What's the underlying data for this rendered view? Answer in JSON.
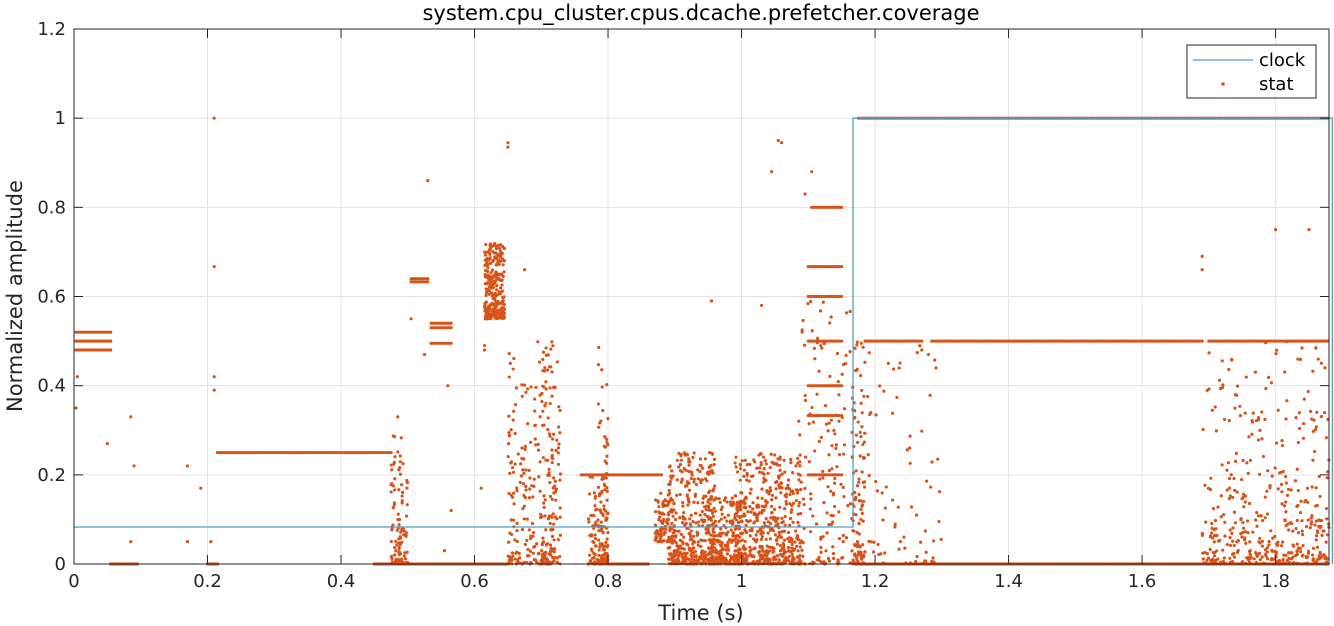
{
  "chart_data": {
    "type": "scatter",
    "title": "system.cpu_cluster.cpus.dcache.prefetcher.coverage",
    "xlabel": "Time (s)",
    "ylabel": "Normalized amplitude",
    "xlim": [
      0,
      1.88
    ],
    "ylim": [
      0,
      1.2
    ],
    "x_ticks": [
      "0",
      "0.2",
      "0.4",
      "0.6",
      "0.8",
      "1",
      "1.2",
      "1.4",
      "1.6",
      "1.8"
    ],
    "y_ticks": [
      "0",
      "0.2",
      "0.4",
      "0.6",
      "0.8",
      "1",
      "1.2"
    ],
    "grid": true,
    "legend_position": "top-right",
    "series": [
      {
        "name": "clock",
        "kind": "step-line",
        "color": "#4f9fc8",
        "x": [
          0,
          1.167,
          1.167,
          1.885,
          1.885
        ],
        "y": [
          0.083,
          0.083,
          1.0,
          1.0,
          0
        ]
      },
      {
        "name": "stat",
        "kind": "markers",
        "color": "#d95319",
        "bands": [
          {
            "x": [
              0.003,
              0.055
            ],
            "y": 0.52
          },
          {
            "x": [
              0.003,
              0.055
            ],
            "y": 0.5
          },
          {
            "x": [
              0.003,
              0.055
            ],
            "y": 0.48
          },
          {
            "x": [
              0.215,
              0.475
            ],
            "y": 0.25
          },
          {
            "x": [
              0.505,
              0.53
            ],
            "y": 0.64
          },
          {
            "x": [
              0.505,
              0.53
            ],
            "y": 0.633
          },
          {
            "x": [
              0.535,
              0.565
            ],
            "y": 0.54
          },
          {
            "x": [
              0.535,
              0.565
            ],
            "y": 0.53
          },
          {
            "x": [
              0.535,
              0.565
            ],
            "y": 0.495
          },
          {
            "x": [
              1.105,
              1.15
            ],
            "y": 0.8
          },
          {
            "x": [
              1.1,
              1.15
            ],
            "y": 0.667
          },
          {
            "x": [
              1.1,
              1.15
            ],
            "y": 0.6
          },
          {
            "x": [
              1.1,
              1.15
            ],
            "y": 0.5
          },
          {
            "x": [
              1.1,
              1.15
            ],
            "y": 0.4
          },
          {
            "x": [
              1.1,
              1.15
            ],
            "y": 0.333
          },
          {
            "x": [
              1.1,
              1.15
            ],
            "y": 0.2
          },
          {
            "x": [
              1.185,
              1.27
            ],
            "y": 0.5
          },
          {
            "x": [
              1.285,
              1.69
            ],
            "y": 0.5
          },
          {
            "x": [
              1.7,
              1.885
            ],
            "y": 0.5
          },
          {
            "x": [
              1.175,
              1.885
            ],
            "y": 1.0
          },
          {
            "x": [
              0.055,
              0.095
            ],
            "y": 0.0
          },
          {
            "x": [
              0.2,
              0.215
            ],
            "y": 0.0
          },
          {
            "x": [
              0.45,
              0.65
            ],
            "y": 0.0
          },
          {
            "x": [
              0.8,
              0.86
            ],
            "y": 0.0
          },
          {
            "x": [
              1.17,
              1.885
            ],
            "y": 0.0
          },
          {
            "x": [
              0.76,
              0.88
            ],
            "y": 0.2
          }
        ],
        "clusters": [
          {
            "x": [
              0.615,
              0.645
            ],
            "y": [
              0.55,
              0.72
            ],
            "n": 260
          },
          {
            "x": [
              0.475,
              0.5
            ],
            "y": [
              0.0,
              0.3
            ],
            "n": 110
          },
          {
            "x": [
              0.65,
              0.72
            ],
            "y": [
              0.0,
              0.5
            ],
            "n": 220
          },
          {
            "x": [
              0.7,
              0.73
            ],
            "y": [
              0.0,
              0.5
            ],
            "n": 90
          },
          {
            "x": [
              0.77,
              0.8
            ],
            "y": [
              0.0,
              0.2
            ],
            "n": 120
          },
          {
            "x": [
              0.785,
              0.8
            ],
            "y": [
              0.0,
              0.5
            ],
            "n": 50
          },
          {
            "x": [
              0.87,
              0.9
            ],
            "y": [
              0.05,
              0.16
            ],
            "n": 100
          },
          {
            "x": [
              0.89,
              0.96
            ],
            "y": [
              0.0,
              0.25
            ],
            "n": 380
          },
          {
            "x": [
              0.95,
              1.0
            ],
            "y": [
              0.0,
              0.15
            ],
            "n": 240
          },
          {
            "x": [
              0.99,
              1.09
            ],
            "y": [
              0.0,
              0.25
            ],
            "n": 520
          },
          {
            "x": [
              1.085,
              1.165
            ],
            "y": [
              0.0,
              0.6
            ],
            "n": 140
          },
          {
            "x": [
              1.165,
              1.185
            ],
            "y": [
              0.0,
              0.5
            ],
            "n": 110
          },
          {
            "x": [
              1.18,
              1.3
            ],
            "y": [
              0.0,
              0.5
            ],
            "n": 80
          },
          {
            "x": [
              1.69,
              1.885
            ],
            "y": [
              0.0,
              0.5
            ],
            "n": 320
          },
          {
            "x": [
              1.69,
              1.885
            ],
            "y": [
              0.0,
              0.1
            ],
            "n": 140
          }
        ],
        "points": [
          {
            "x": 0.21,
            "y": 1.0
          },
          {
            "x": 0.21,
            "y": 0.667
          },
          {
            "x": 0.53,
            "y": 0.86
          },
          {
            "x": 0.65,
            "y": 0.945
          },
          {
            "x": 0.65,
            "y": 0.935
          },
          {
            "x": 1.055,
            "y": 0.95
          },
          {
            "x": 1.06,
            "y": 0.945
          },
          {
            "x": 1.045,
            "y": 0.88
          },
          {
            "x": 1.03,
            "y": 0.58
          },
          {
            "x": 1.105,
            "y": 0.88
          },
          {
            "x": 1.095,
            "y": 0.83
          },
          {
            "x": 0.955,
            "y": 0.59
          },
          {
            "x": 0.005,
            "y": 0.42
          },
          {
            "x": 0.003,
            "y": 0.35
          },
          {
            "x": 0.05,
            "y": 0.27
          },
          {
            "x": 0.085,
            "y": 0.33
          },
          {
            "x": 0.09,
            "y": 0.22
          },
          {
            "x": 0.085,
            "y": 0.05
          },
          {
            "x": 0.17,
            "y": 0.22
          },
          {
            "x": 0.17,
            "y": 0.05
          },
          {
            "x": 0.19,
            "y": 0.17
          },
          {
            "x": 0.21,
            "y": 0.42
          },
          {
            "x": 0.21,
            "y": 0.39
          },
          {
            "x": 0.205,
            "y": 0.05
          },
          {
            "x": 0.485,
            "y": 0.33
          },
          {
            "x": 0.505,
            "y": 0.55
          },
          {
            "x": 0.525,
            "y": 0.47
          },
          {
            "x": 0.56,
            "y": 0.4
          },
          {
            "x": 0.565,
            "y": 0.12
          },
          {
            "x": 0.615,
            "y": 0.49
          },
          {
            "x": 0.615,
            "y": 0.48
          },
          {
            "x": 0.61,
            "y": 0.17
          },
          {
            "x": 0.645,
            "y": 0.68
          },
          {
            "x": 0.675,
            "y": 0.66
          },
          {
            "x": 0.555,
            "y": 0.03
          },
          {
            "x": 1.69,
            "y": 0.69
          },
          {
            "x": 1.69,
            "y": 0.66
          },
          {
            "x": 1.8,
            "y": 0.75
          },
          {
            "x": 1.85,
            "y": 0.75
          },
          {
            "x": 1.22,
            "y": 0.45
          },
          {
            "x": 1.28,
            "y": 0.47
          },
          {
            "x": 1.74,
            "y": 0.5
          }
        ]
      }
    ]
  }
}
